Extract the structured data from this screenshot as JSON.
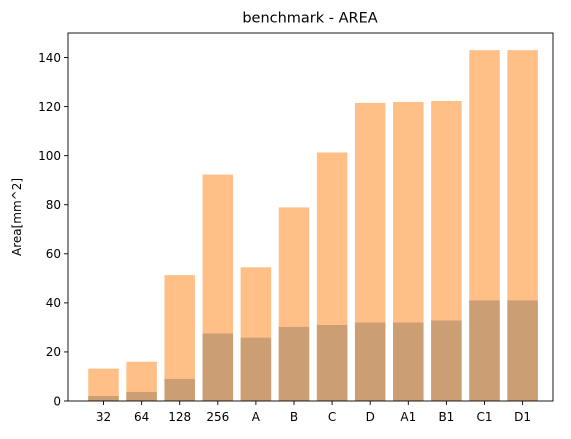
{
  "chart_data": {
    "type": "bar",
    "title": "benchmark - AREA",
    "xlabel": "",
    "ylabel": "Area[mm^2]",
    "categories": [
      "32",
      "64",
      "128",
      "256",
      "A",
      "B",
      "C",
      "D",
      "A1",
      "B1",
      "C1",
      "D1"
    ],
    "series": [
      {
        "values": [
          13.2,
          16.0,
          51.3,
          92.3,
          54.5,
          78.9,
          101.3,
          121.5,
          121.9,
          122.3,
          143.0,
          143.0
        ],
        "color": "#ffbf87"
      },
      {
        "values": [
          2.0,
          3.7,
          9.0,
          27.5,
          25.8,
          30.2,
          31.0,
          32.0,
          32.0,
          32.8,
          41.0,
          41.0
        ],
        "color": "#cb9e74"
      }
    ],
    "ylim": [
      0,
      150
    ],
    "yticks": [
      0,
      20,
      40,
      60,
      80,
      100,
      120,
      140
    ],
    "grid": false,
    "legend": "none"
  }
}
